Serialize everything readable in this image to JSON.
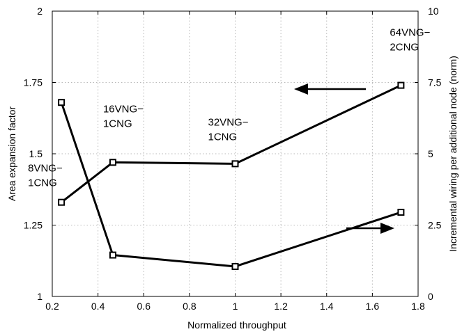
{
  "chart_data": {
    "type": "line",
    "xlabel": "Normalized throughput",
    "ylabel_left": "Area expansion factor",
    "ylabel_right": "Incremental wiring per additional node (norm)",
    "xlim": [
      0.2,
      1.8
    ],
    "ylim_left": [
      1,
      2
    ],
    "ylim_right": [
      0,
      10
    ],
    "x_ticks": [
      "0.2",
      "0.4",
      "0.6",
      "0.8",
      "1",
      "1.2",
      "1.4",
      "1.6",
      "1.8"
    ],
    "y_left_ticks": [
      "1",
      "1.25",
      "1.5",
      "1.75",
      "2"
    ],
    "y_right_ticks": [
      "0",
      "2.5",
      "5",
      "7.5",
      "10"
    ],
    "grid": true,
    "series": [
      {
        "axis": "left",
        "x": [
          0.24,
          0.465,
          1.0,
          1.725
        ],
        "y": [
          1.33,
          1.47,
          1.465,
          1.74
        ]
      },
      {
        "axis": "right",
        "x": [
          0.24,
          0.465,
          1.0,
          1.725
        ],
        "y": [
          6.8,
          1.45,
          1.05,
          2.95
        ]
      }
    ],
    "annotations": [
      {
        "lines": [
          "8VNG−",
          "1CNG"
        ]
      },
      {
        "lines": [
          "16VNG−",
          "1CNG"
        ]
      },
      {
        "lines": [
          "32VNG−",
          "1CNG"
        ]
      },
      {
        "lines": [
          "64VNG−",
          "2CNG"
        ]
      }
    ],
    "arrows": [
      {
        "points_to": "left axis"
      },
      {
        "points_to": "right axis"
      }
    ],
    "colors": {
      "line": "#000000",
      "grid": "#b8b8b8",
      "background": "#ffffff"
    }
  }
}
